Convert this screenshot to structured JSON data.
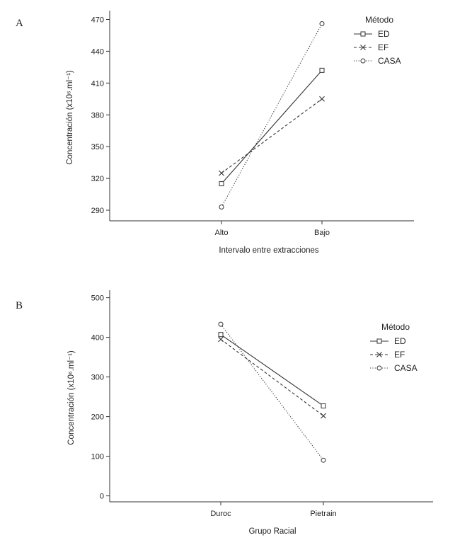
{
  "chart_data": [
    {
      "panel": "A",
      "type": "line",
      "categories": [
        "Alto",
        "Bajo"
      ],
      "xlabel": "Intervalo entre extracciones",
      "ylabel": "Concentración (x10⁶.ml⁻¹)",
      "ylim": [
        280,
        475
      ],
      "yticks": [
        290,
        320,
        350,
        380,
        410,
        440,
        470
      ],
      "legend_title": "Método",
      "legend_position": "top-right",
      "series": [
        {
          "name": "ED",
          "marker": "square",
          "dash": "solid",
          "values": [
            315,
            422
          ]
        },
        {
          "name": "EF",
          "marker": "x",
          "dash": "dashed",
          "values": [
            325,
            395
          ]
        },
        {
          "name": "CASA",
          "marker": "circle",
          "dash": "dotted",
          "values": [
            293,
            466
          ]
        }
      ]
    },
    {
      "panel": "B",
      "type": "line",
      "categories": [
        "Duroc",
        "Pietrain"
      ],
      "xlabel": "Grupo Racial",
      "ylabel": "Concentración (x10⁶.ml⁻¹)",
      "ylim": [
        -15,
        510
      ],
      "yticks": [
        0,
        100,
        200,
        300,
        400,
        500
      ],
      "legend_title": "Método",
      "legend_position": "right",
      "series": [
        {
          "name": "ED",
          "marker": "square",
          "dash": "solid",
          "values": [
            407,
            227
          ]
        },
        {
          "name": "EF",
          "marker": "x",
          "dash": "dashed",
          "values": [
            395,
            202
          ]
        },
        {
          "name": "CASA",
          "marker": "circle",
          "dash": "dotted",
          "values": [
            433,
            90
          ]
        }
      ]
    }
  ]
}
